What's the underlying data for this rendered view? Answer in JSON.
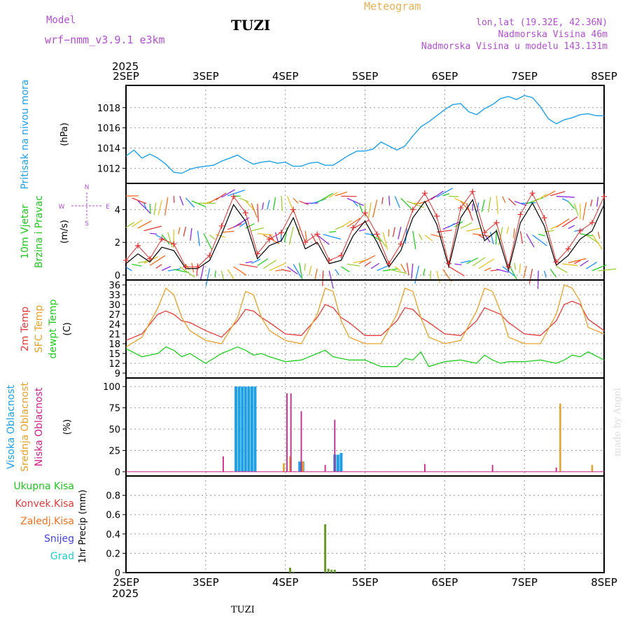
{
  "header": {
    "model_label": "Model",
    "model_name": "wrf−nmm_v3.9.1  e3km",
    "station": "TUZI",
    "meteogram": "Meteogram",
    "lonlat": "lon,lat (19.32E, 42.36N)",
    "altitude": "Nadmorska Visina 46m",
    "model_altitude": "Nadmorska Visina u modelu 143.131m",
    "footer_station": "TUZI",
    "credit": "made by Angel"
  },
  "colors": {
    "pressure": "#1ea0e6",
    "wind_label": "#22c522",
    "wind_speed": "#000000",
    "wind_gust": "#e03030",
    "temp2m": "#e33b3b",
    "sfc": "#e6a12a",
    "dew": "#22cc22",
    "high_cloud": "#1ea0e6",
    "mid_cloud": "#e6a12a",
    "low_cloud": "#cc2288",
    "precip_total": "#22c522",
    "precip_conv": "#e33b3b",
    "precip_frozen": "#f07020",
    "snow": "#4444dd",
    "hail": "#22cccc",
    "header_purple": "#b04fd0",
    "meteogram_orange": "#e6b055"
  },
  "chart_data": [
    {
      "type": "line",
      "id": "pressure",
      "title": "Pritisak na nivou mora",
      "ylabel": "(hPa)",
      "x_unit": "days since 2SEP 00UTC",
      "xlim": [
        0,
        6
      ],
      "ylim": [
        1010.5,
        1020.2
      ],
      "yticks": [
        1012,
        1014,
        1016,
        1018
      ],
      "x": [
        0,
        0.1,
        0.2,
        0.3,
        0.4,
        0.5,
        0.6,
        0.7,
        0.8,
        0.9,
        1.0,
        1.1,
        1.2,
        1.3,
        1.4,
        1.5,
        1.6,
        1.7,
        1.8,
        1.9,
        2.0,
        2.1,
        2.2,
        2.3,
        2.4,
        2.5,
        2.6,
        2.7,
        2.8,
        2.9,
        3.0,
        3.1,
        3.2,
        3.3,
        3.4,
        3.5,
        3.6,
        3.7,
        3.8,
        3.9,
        4.0,
        4.1,
        4.2,
        4.3,
        4.4,
        4.5,
        4.6,
        4.7,
        4.8,
        4.9,
        5.0,
        5.1,
        5.2,
        5.3,
        5.4,
        5.5,
        5.6,
        5.7,
        5.8,
        5.9,
        6.0
      ],
      "values": [
        1013.2,
        1013.8,
        1013.0,
        1013.4,
        1013.0,
        1012.4,
        1011.6,
        1011.5,
        1011.9,
        1012.1,
        1012.2,
        1012.3,
        1012.7,
        1013.0,
        1013.3,
        1012.8,
        1012.4,
        1012.6,
        1012.7,
        1012.5,
        1012.6,
        1012.2,
        1012.2,
        1012.5,
        1012.6,
        1012.3,
        1012.3,
        1012.8,
        1013.3,
        1013.7,
        1013.7,
        1013.9,
        1014.6,
        1014.2,
        1013.8,
        1014.2,
        1015.2,
        1016.1,
        1016.6,
        1017.2,
        1017.8,
        1018.3,
        1018.4,
        1017.6,
        1017.3,
        1017.9,
        1018.3,
        1018.9,
        1019.1,
        1018.8,
        1019.2,
        1019.0,
        1018.1,
        1016.9,
        1016.4,
        1016.8,
        1017.0,
        1017.3,
        1017.4,
        1017.2,
        1017.2
      ]
    },
    {
      "type": "line",
      "id": "wind",
      "title_lines": [
        "10m Vjetar",
        "Brzina i Pravac"
      ],
      "ylabel": "(m/s)",
      "compass": {
        "n": "N",
        "s": "S",
        "e": "E",
        "w": "W"
      },
      "xlim": [
        0,
        6
      ],
      "ylim": [
        -0.3,
        5.6
      ],
      "yticks": [
        0,
        2,
        4
      ],
      "x": [
        0,
        0.15,
        0.3,
        0.45,
        0.6,
        0.75,
        0.9,
        1.05,
        1.2,
        1.35,
        1.5,
        1.65,
        1.8,
        1.95,
        2.1,
        2.25,
        2.4,
        2.55,
        2.7,
        2.85,
        3.0,
        3.15,
        3.3,
        3.45,
        3.6,
        3.75,
        3.9,
        4.05,
        4.2,
        4.35,
        4.5,
        4.65,
        4.8,
        4.95,
        5.1,
        5.25,
        5.4,
        5.55,
        5.7,
        5.85,
        6.0
      ],
      "series": [
        {
          "name": "speed",
          "values": [
            0.7,
            1.3,
            0.8,
            1.7,
            1.5,
            0.4,
            0.4,
            0.9,
            2.5,
            4.3,
            3.3,
            1.0,
            1.8,
            2.1,
            3.5,
            1.6,
            2.0,
            0.7,
            0.9,
            2.4,
            3.3,
            2.0,
            0.5,
            1.5,
            3.5,
            4.5,
            3.1,
            0.5,
            3.5,
            4.6,
            2.1,
            2.7,
            0.3,
            3.2,
            4.4,
            3.0,
            0.6,
            1.2,
            2.2,
            2.7,
            4.3
          ]
        },
        {
          "name": "gust",
          "values": [
            0.9,
            1.8,
            1.0,
            2.2,
            1.9,
            0.5,
            0.5,
            1.2,
            3.0,
            4.8,
            3.8,
            1.3,
            2.2,
            2.6,
            4.0,
            2.0,
            2.5,
            0.9,
            1.2,
            2.9,
            3.8,
            2.5,
            0.7,
            1.9,
            4.0,
            5.0,
            3.6,
            0.7,
            4.1,
            5.1,
            2.6,
            3.2,
            0.5,
            3.7,
            5.0,
            3.5,
            0.8,
            1.6,
            2.7,
            3.2,
            4.8
          ]
        }
      ]
    },
    {
      "type": "line",
      "id": "temperature",
      "title_lines": [
        "2m Temp",
        "SFC Temp",
        "dewpt Temp"
      ],
      "ylabel": "(C)",
      "xlim": [
        0,
        6
      ],
      "ylim": [
        7.5,
        37.5
      ],
      "yticks": [
        9,
        12,
        15,
        18,
        21,
        24,
        27,
        30,
        33,
        36
      ],
      "x": [
        0,
        0.2,
        0.4,
        0.5,
        0.6,
        0.7,
        0.8,
        1.0,
        1.2,
        1.4,
        1.5,
        1.6,
        1.7,
        1.8,
        2.0,
        2.2,
        2.4,
        2.5,
        2.6,
        2.7,
        2.8,
        3.0,
        3.2,
        3.4,
        3.5,
        3.6,
        3.7,
        3.8,
        4.0,
        4.2,
        4.4,
        4.5,
        4.6,
        4.7,
        4.8,
        5.0,
        5.2,
        5.4,
        5.5,
        5.6,
        5.7,
        5.8,
        6.0
      ],
      "series": [
        {
          "name": "2m Temp",
          "values": [
            19,
            21,
            27,
            28,
            27,
            25,
            24.5,
            22,
            20,
            25,
            28.5,
            28,
            26,
            24.5,
            21,
            20.5,
            26,
            30,
            29,
            26,
            24.5,
            20.5,
            20.5,
            25,
            29,
            28.5,
            26,
            24.5,
            21,
            20.5,
            25,
            29,
            28,
            27,
            24.5,
            21,
            20.5,
            25,
            30,
            31,
            30,
            25.5,
            22
          ]
        },
        {
          "name": "SFC Temp",
          "values": [
            17,
            20,
            29,
            35,
            33,
            26,
            22,
            19,
            18,
            26,
            34,
            33,
            26,
            22,
            19,
            18,
            27,
            35,
            34,
            25,
            20,
            18,
            18,
            27,
            35,
            34,
            26,
            20,
            18,
            19,
            28,
            35,
            34,
            28,
            20,
            18,
            18,
            27,
            36,
            35,
            31,
            23,
            21
          ]
        },
        {
          "name": "dewpt Temp",
          "values": [
            16.5,
            14,
            15,
            17,
            16,
            14,
            15,
            12,
            15,
            17,
            16,
            14.5,
            15,
            14,
            12.5,
            13,
            15,
            16,
            14,
            13.5,
            13,
            13,
            11,
            11,
            13.5,
            13,
            15.5,
            11,
            12.5,
            13,
            12,
            14.5,
            13,
            12,
            12.5,
            12.5,
            13,
            12,
            13,
            14.5,
            14,
            15.5,
            13
          ]
        }
      ]
    },
    {
      "type": "bar",
      "id": "cloud",
      "title_lines": [
        "Visoka Oblacnost",
        "Srednja Oblacnost",
        "Niska Oblacnost"
      ],
      "ylabel": "(%)",
      "xlim": [
        0,
        6
      ],
      "ylim": [
        -5,
        110
      ],
      "yticks": [
        0,
        25,
        50,
        75,
        100
      ],
      "series": [
        {
          "name": "Visoka Oblacnost",
          "x": [
            1.38,
            1.42,
            1.46,
            1.5,
            1.54,
            1.58,
            1.62,
            2.18,
            2.22,
            2.62,
            2.66,
            2.7
          ],
          "values": [
            100,
            100,
            100,
            100,
            100,
            100,
            100,
            12,
            12,
            20,
            20,
            22
          ]
        },
        {
          "name": "Srednja Oblacnost",
          "x": [
            1.98,
            2.06,
            2.22,
            5.45,
            5.85
          ],
          "values": [
            10,
            18,
            12,
            80,
            8
          ]
        },
        {
          "name": "Niska Oblacnost",
          "x": [
            1.22,
            2.02,
            2.07,
            2.2,
            2.5,
            2.62,
            3.75,
            4.6,
            5.4
          ],
          "values": [
            18,
            92,
            92,
            71,
            8,
            61,
            9,
            8,
            5
          ]
        }
      ]
    },
    {
      "type": "bar",
      "id": "precip",
      "title_lines": [
        "Ukupna Kisa",
        "Konvek.Kisa",
        "Zaledj.Kisa",
        "Snijeg",
        "Grad"
      ],
      "ylabel": "1hr Precip (mm)",
      "xlim": [
        0,
        6
      ],
      "ylim": [
        0,
        1.0
      ],
      "yticks": [
        0,
        0.2,
        0.4,
        0.6,
        0.8
      ],
      "series": [
        {
          "name": "Ukupna Kisa",
          "x": [
            2.06,
            2.1,
            2.5,
            2.54,
            2.58,
            2.62
          ],
          "values": [
            0.05,
            0.01,
            0.5,
            0.04,
            0.03,
            0.03
          ]
        }
      ]
    }
  ],
  "axis": {
    "top_year": "2025",
    "bottom_year": "2025",
    "day_labels": [
      "2SEP",
      "3SEP",
      "4SEP",
      "5SEP",
      "6SEP",
      "7SEP",
      "8SEP"
    ]
  }
}
